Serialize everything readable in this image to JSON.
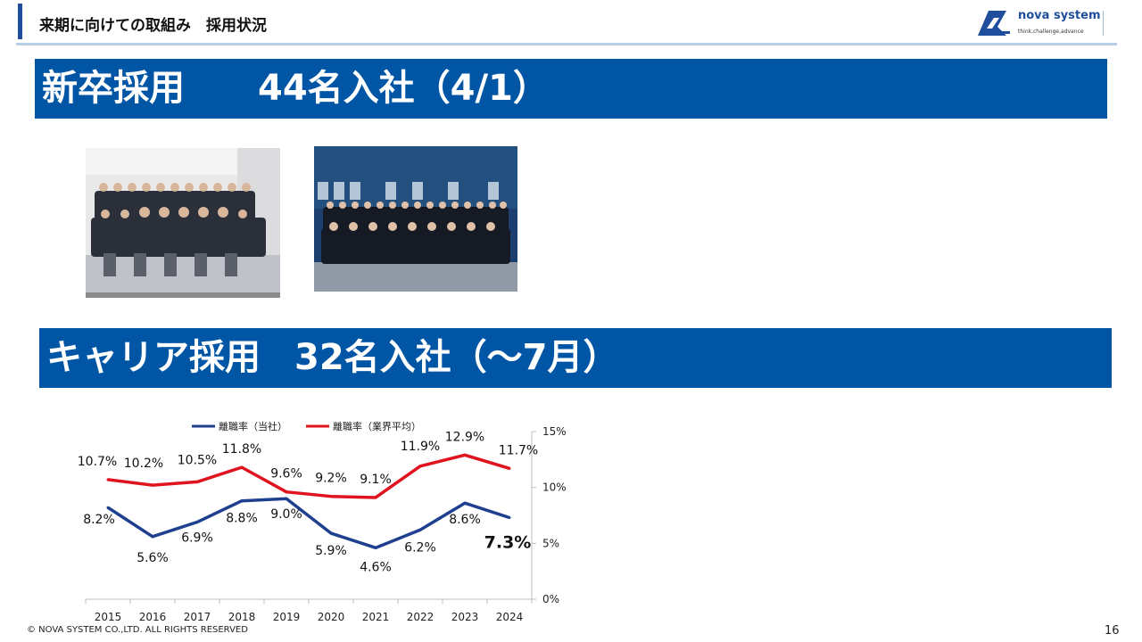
{
  "header": {
    "title": "来期に向けての取組み　採用状況",
    "logo_name": "nova system",
    "logo_tagline": "think,challenge,advance"
  },
  "new_grad": {
    "label": "新卒採用",
    "count_text": "44名入社（4/1）"
  },
  "career": {
    "label": "キャリア採用",
    "count_text": "32名入社（～7月）"
  },
  "chart_data": {
    "type": "line",
    "x": [
      "2015",
      "2016",
      "2017",
      "2018",
      "2019",
      "2020",
      "2021",
      "2022",
      "2023",
      "2024"
    ],
    "series": [
      {
        "name": "離職率（当社）",
        "color": "#1f3f8f",
        "values": [
          8.2,
          5.6,
          6.9,
          8.8,
          9.0,
          5.9,
          4.6,
          6.2,
          8.6,
          7.3
        ],
        "labels": [
          "8.2%",
          "5.6%",
          "6.9%",
          "8.8%",
          "9.0%",
          "5.9%",
          "4.6%",
          "6.2%",
          "8.6%",
          "7.3%"
        ]
      },
      {
        "name": "離職率（業界平均）",
        "color": "#e0141e",
        "values": [
          10.7,
          10.2,
          10.5,
          11.8,
          9.6,
          9.2,
          9.1,
          11.9,
          12.9,
          11.7
        ],
        "labels": [
          "10.7%",
          "10.2%",
          "10.5%",
          "11.8%",
          "9.6%",
          "9.2%",
          "9.1%",
          "11.9%",
          "12.9%",
          "11.7%"
        ]
      }
    ],
    "yaxis": {
      "position": "right",
      "ticks": [
        "0%",
        "5%",
        "10%",
        "15%"
      ],
      "ylim": [
        0,
        15
      ]
    },
    "legend": "top",
    "grid": false
  },
  "footer": {
    "copyright": "© NOVA SYSTEM CO.,LTD. ALL RIGHTS RESERVED",
    "page": "16"
  }
}
